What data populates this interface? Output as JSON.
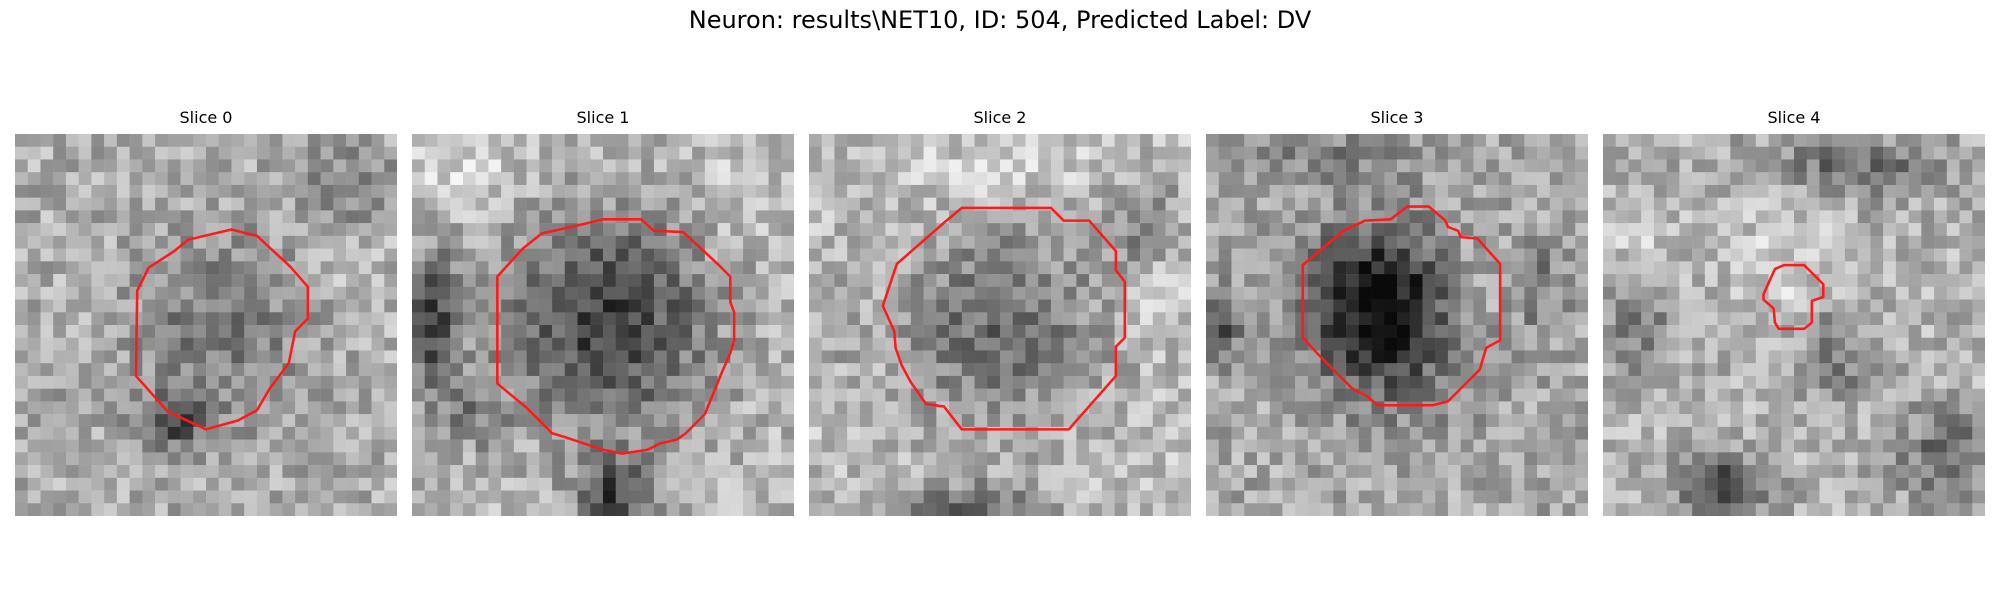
{
  "figure": {
    "title": "Neuron: results\\NET10, ID: 504, Predicted Label: DV"
  },
  "colors": {
    "contour": "#ff1a1a",
    "background": "#ffffff"
  },
  "panels": [
    {
      "title": "Slice 0"
    },
    {
      "title": "Slice 1"
    },
    {
      "title": "Slice 2"
    },
    {
      "title": "Slice 3"
    },
    {
      "title": "Slice 4"
    }
  ]
}
